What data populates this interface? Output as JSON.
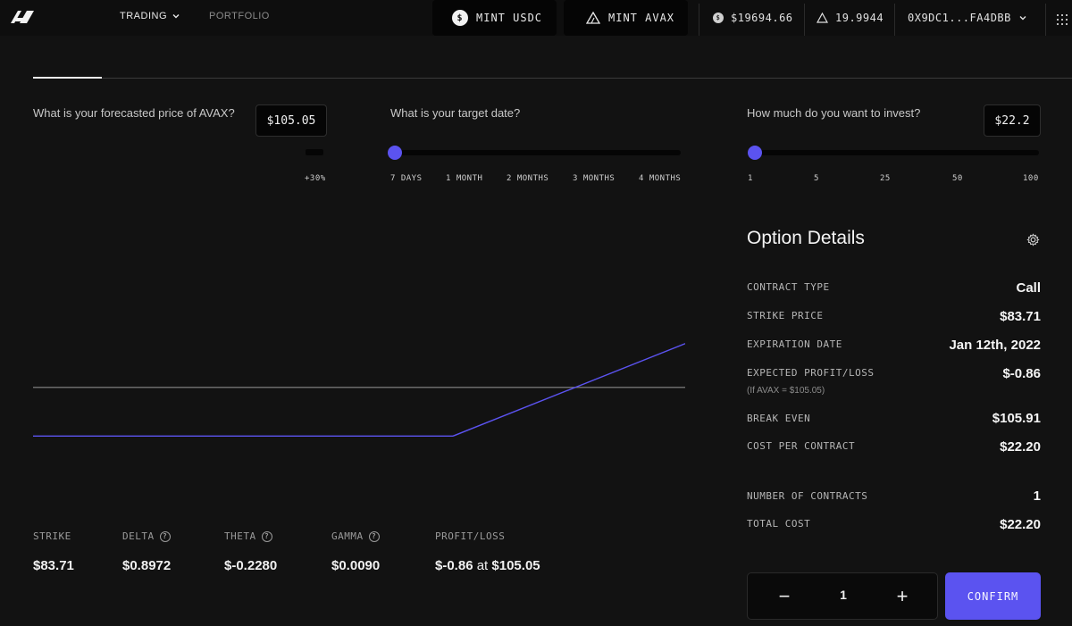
{
  "nav": {
    "trading_label": "TRADING",
    "portfolio_label": "PORTFOLIO",
    "mint_usdc_label": "MINT USDC",
    "mint_avax_label": "MINT AVAX",
    "usdc_balance": "$19694.66",
    "avax_balance": "19.9944",
    "wallet_address": "0X9DC1...FA4DBB"
  },
  "forecast": {
    "question": "What is your forecasted price of AVAX?",
    "value": "$105.05",
    "tick_label": "+30%"
  },
  "target_date": {
    "question": "What is your target date?",
    "ticks": [
      "7 DAYS",
      "1 MONTH",
      "2 MONTHS",
      "3 MONTHS",
      "4 MONTHS"
    ],
    "selected": "7 DAYS"
  },
  "invest": {
    "question": "How much do you want to invest?",
    "value": "$22.2",
    "ticks": [
      "1",
      "5",
      "25",
      "50",
      "100"
    ],
    "selected": 1
  },
  "chart_data": {
    "type": "line",
    "series": [
      {
        "values": [
          [
            0,
            -22.2
          ],
          [
            83.71,
            -22.2
          ],
          [
            130,
            20
          ]
        ]
      }
    ],
    "x_range": [
      0,
      130
    ],
    "y_range": [
      -40,
      70
    ],
    "zero_line": true,
    "colors": {
      "payoff": "#5b53f0",
      "zero": "#8a8a8a"
    }
  },
  "greeks": {
    "strike_label": "STRIKE",
    "strike": "$83.71",
    "delta_label": "DELTA",
    "delta": "$0.8972",
    "theta_label": "THETA",
    "theta": "$-0.2280",
    "gamma_label": "GAMMA",
    "gamma": "$0.0090",
    "pl_label": "PROFIT/LOSS",
    "pl_value": "$-0.86",
    "pl_at": "at",
    "pl_price": "$105.05"
  },
  "option_details": {
    "title": "Option Details",
    "contract_type_label": "CONTRACT TYPE",
    "contract_type": "Call",
    "strike_price_label": "STRIKE PRICE",
    "strike_price": "$83.71",
    "expiration_label": "EXPIRATION DATE",
    "expiration": "Jan 12th, 2022",
    "expected_pl_label": "EXPECTED PROFIT/LOSS",
    "expected_pl_sub": "(If AVAX = $105.05)",
    "expected_pl": "$-0.86",
    "break_even_label": "BREAK EVEN",
    "break_even": "$105.91",
    "cost_per_contract_label": "COST PER CONTRACT",
    "cost_per_contract": "$22.20",
    "num_contracts_label": "NUMBER OF CONTRACTS",
    "num_contracts": "1",
    "total_cost_label": "TOTAL COST",
    "total_cost": "$22.20"
  },
  "order": {
    "quantity": "1",
    "minus": "−",
    "plus": "+",
    "confirm_label": "CONFIRM"
  },
  "colors": {
    "accent": "#5b53f0",
    "background": "#121212"
  }
}
